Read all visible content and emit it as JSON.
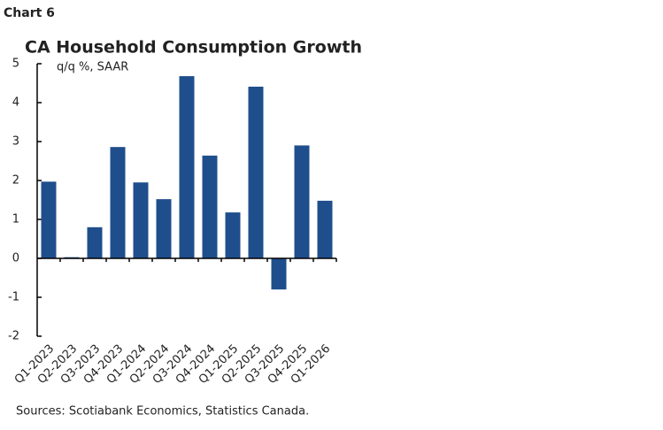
{
  "header": "Chart 6",
  "chart_data": {
    "type": "bar",
    "title": "CA Household Consumption Growth",
    "subtitle": "q/q %, SAAR",
    "categories": [
      "Q1-2023",
      "Q2-2023",
      "Q3-2023",
      "Q4-2023",
      "Q1-2024",
      "Q2-2024",
      "Q3-2024",
      "Q4-2024",
      "Q1-2025",
      "Q2-2025",
      "Q3-2025",
      "Q4-2025",
      "Q1-2026"
    ],
    "values": [
      1.97,
      0.03,
      0.8,
      2.86,
      1.95,
      1.52,
      4.68,
      2.64,
      1.18,
      4.41,
      -0.8,
      2.9,
      1.48
    ],
    "color": "#1f4e8c",
    "ylim": [
      -2,
      5
    ],
    "yticks": [
      -2,
      -1,
      0,
      1,
      2,
      3,
      4,
      5
    ],
    "source": "Sources: Scotiabank Economics, Statistics Canada."
  }
}
